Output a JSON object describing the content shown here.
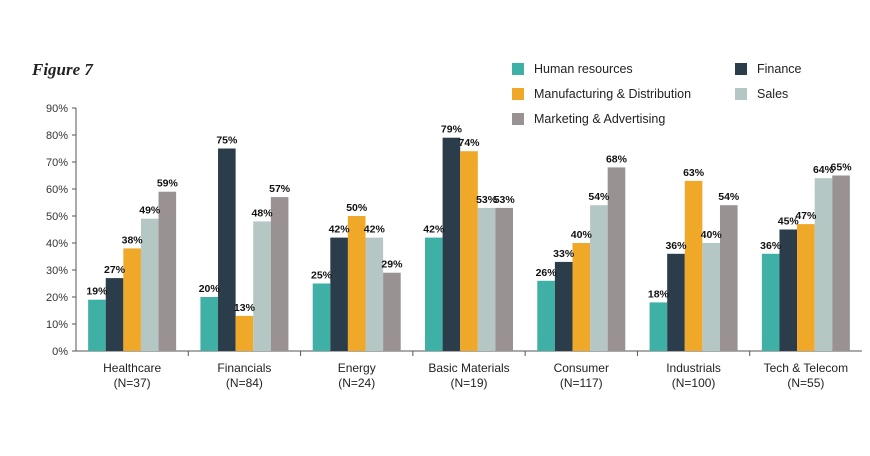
{
  "figure_label": "Figure 7",
  "chart_data": {
    "type": "bar",
    "ylim": [
      0,
      90
    ],
    "y_ticks": [
      "0%",
      "10%",
      "20%",
      "30%",
      "40%",
      "50%",
      "60%",
      "70%",
      "80%",
      "90%"
    ],
    "categories": [
      [
        "Healthcare",
        "(N=37)"
      ],
      [
        "Financials",
        "(N=84)"
      ],
      [
        "Energy",
        "(N=24)"
      ],
      [
        "Basic Materials",
        "(N=19)"
      ],
      [
        "Consumer",
        "(N=117)"
      ],
      [
        "Industrials",
        "(N=100)"
      ],
      [
        "Tech & Telecom",
        "(N=55)"
      ]
    ],
    "legend_position": "top-right",
    "grid": false,
    "series": [
      {
        "name": "Human resources",
        "color": "#3fb0a5",
        "values": [
          19,
          20,
          25,
          42,
          26,
          18,
          36
        ]
      },
      {
        "name": "Finance",
        "color": "#2b3d4b",
        "values": [
          27,
          75,
          42,
          79,
          33,
          36,
          45
        ]
      },
      {
        "name": "Manufacturing & Distribution",
        "color": "#f0a828",
        "values": [
          38,
          13,
          50,
          74,
          40,
          63,
          47
        ]
      },
      {
        "name": "Sales",
        "color": "#b4c7c5",
        "values": [
          49,
          48,
          42,
          53,
          54,
          40,
          64
        ]
      },
      {
        "name": "Marketing & Advertising",
        "color": "#9a9292",
        "values": [
          59,
          57,
          29,
          53,
          68,
          54,
          65
        ]
      }
    ],
    "legend_order": [
      0,
      2,
      4,
      1,
      3
    ]
  }
}
